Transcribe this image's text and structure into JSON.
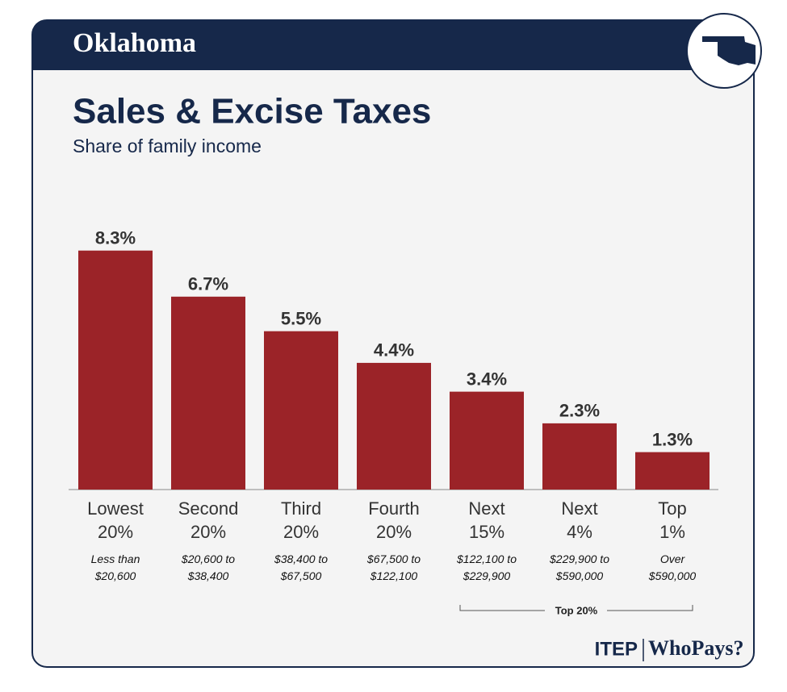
{
  "header": {
    "state": "Oklahoma"
  },
  "chart_data": {
    "type": "bar",
    "title": "Sales & Excise Taxes",
    "subtitle": "Share of family income",
    "categories": [
      "Lowest 20%",
      "Second 20%",
      "Third 20%",
      "Fourth 20%",
      "Next 15%",
      "Next 4%",
      "Top 1%"
    ],
    "income_ranges": [
      [
        "Less than",
        "$20,600"
      ],
      [
        "$20,600 to",
        "$38,400"
      ],
      [
        "$38,400 to",
        "$67,500"
      ],
      [
        "$67,500 to",
        "$122,100"
      ],
      [
        "$122,100 to",
        "$229,900"
      ],
      [
        "$229,900 to",
        "$590,000"
      ],
      [
        "Over",
        "$590,000"
      ]
    ],
    "values": [
      8.3,
      6.7,
      5.5,
      4.4,
      3.4,
      2.3,
      1.3
    ],
    "value_labels": [
      "8.3%",
      "6.7%",
      "5.5%",
      "4.4%",
      "3.4%",
      "2.3%",
      "1.3%"
    ],
    "color": "#9b2328",
    "group_label": "Top 20%"
  },
  "footer": {
    "logo": "ITEP",
    "brand": "WhoPays?"
  }
}
